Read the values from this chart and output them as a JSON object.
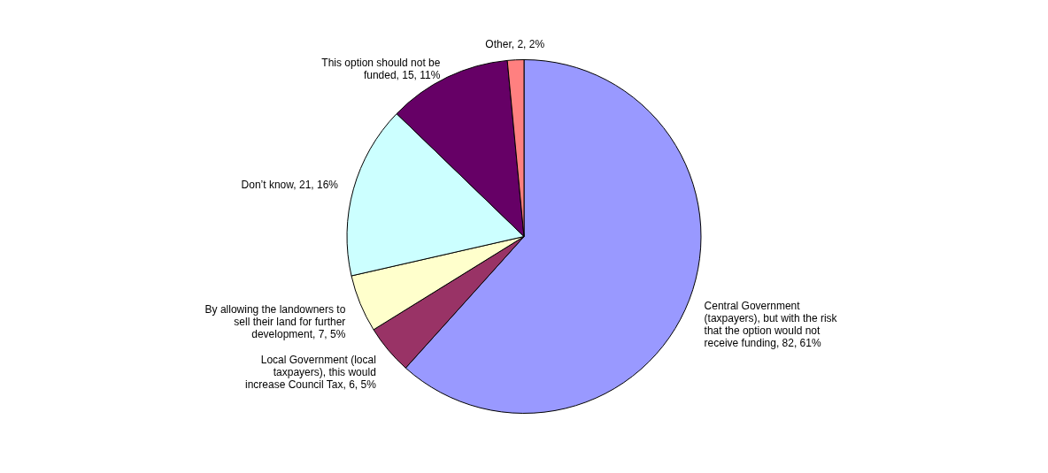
{
  "chart_data": {
    "type": "pie",
    "categories": [
      "Central Government (taxpayers), but with the risk that the option would not receive funding",
      "Local Government (local taxpayers), this would increase Council Tax",
      "By allowing the landowners to sell their land for further development",
      "Don’t know",
      "This option should not be funded",
      "Other"
    ],
    "values": [
      82,
      6,
      7,
      21,
      15,
      2
    ],
    "value_labels": [
      "82, 61%",
      "6, 5%",
      "7, 5%",
      "21, 16%",
      "15, 11%",
      "2, 2%"
    ],
    "colors": [
      "#9999ff",
      "#993366",
      "#ffffcc",
      "#ccffff",
      "#660066",
      "#ff8080"
    ]
  }
}
